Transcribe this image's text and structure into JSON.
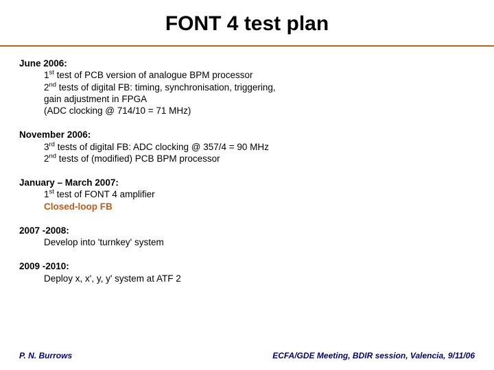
{
  "title": "FONT 4 test plan",
  "colors": {
    "accent": "#c55a11",
    "footer_text": "#000080",
    "background": "#ffffff",
    "text": "#000000"
  },
  "typography": {
    "title_fontsize": 30,
    "body_fontsize": 13.5,
    "footer_fontsize": 12,
    "line_height": 1.28
  },
  "blocks": {
    "b1": {
      "heading": "June 2006:",
      "l1a": "1",
      "l1sup": "st",
      "l1b": " test of PCB version of analogue BPM processor",
      "l2a": "2",
      "l2sup": "nd",
      "l2b": " tests of digital FB: timing, synchronisation, triggering,",
      "l3": "gain adjustment in FPGA",
      "l4": "(ADC clocking @ 714/10 = 71 MHz)"
    },
    "b2": {
      "heading": "November 2006:",
      "l1a": "3",
      "l1sup": "rd",
      "l1b": " tests of digital FB: ADC clocking @ 357/4 = 90 MHz",
      "l2a": "2",
      "l2sup": "nd",
      "l2b": " tests of (modified) PCB BPM processor"
    },
    "b3": {
      "heading": "January – March 2007:",
      "l1a": "1",
      "l1sup": "st",
      "l1b": " test of FONT 4 amplifier",
      "l2": "Closed-loop FB"
    },
    "b4": {
      "heading": "2007 -2008:",
      "l1": "Develop into 'turnkey' system"
    },
    "b5": {
      "heading": "2009 -2010:",
      "l1": "Deploy x, x', y, y' system at ATF 2"
    }
  },
  "footer": {
    "left": "P. N. Burrows",
    "right": "ECFA/GDE Meeting, BDIR session, Valencia, 9/11/06"
  }
}
